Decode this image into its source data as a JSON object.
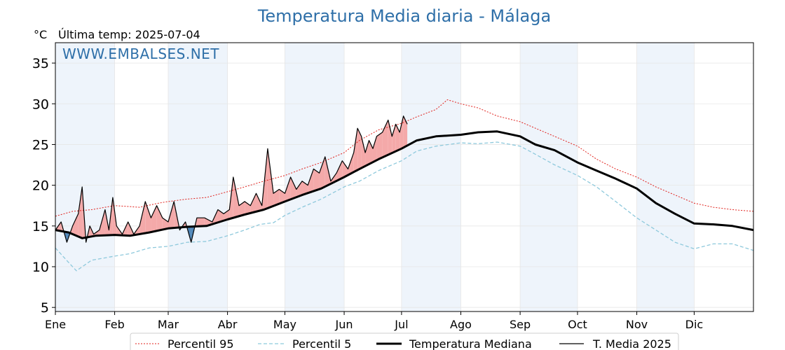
{
  "title": "Temperatura Media diaria - Málaga",
  "unit_label": "°C",
  "last_temp_label": "Última temp: 2025-07-04",
  "watermark": "WWW.EMBALSES.NET",
  "colors": {
    "title": "#2e6fa8",
    "p95": "#e0201b",
    "p5": "#8ec9dc",
    "median": "#000000",
    "current": "#000000",
    "fill_above": "#f4a9a9",
    "fill_below": "#4f86b8",
    "month_band": "#eef4fb"
  },
  "chart_data": {
    "type": "line",
    "x_unit": "day_of_year",
    "xlim": [
      1,
      366
    ],
    "ylim": [
      4.5,
      37.5
    ],
    "yticks": [
      5,
      10,
      15,
      20,
      25,
      30,
      35
    ],
    "months": [
      {
        "label": "Ene",
        "start_day": 1
      },
      {
        "label": "Feb",
        "start_day": 32
      },
      {
        "label": "Mar",
        "start_day": 60
      },
      {
        "label": "Abr",
        "start_day": 91
      },
      {
        "label": "May",
        "start_day": 121
      },
      {
        "label": "Jun",
        "start_day": 152
      },
      {
        "label": "Jul",
        "start_day": 182
      },
      {
        "label": "Ago",
        "start_day": 213
      },
      {
        "label": "Sep",
        "start_day": 244
      },
      {
        "label": "Oct",
        "start_day": 274
      },
      {
        "label": "Nov",
        "start_day": 305
      },
      {
        "label": "Dic",
        "start_day": 335
      }
    ],
    "shaded_months": [
      "Ene",
      "Mar",
      "May",
      "Jul",
      "Sep",
      "Nov"
    ],
    "series": [
      {
        "name": "Percentil 95",
        "style": "dotted",
        "color": "#e0201b",
        "points": [
          [
            1,
            16.2
          ],
          [
            10,
            16.8
          ],
          [
            20,
            17.0
          ],
          [
            32,
            17.5
          ],
          [
            45,
            17.3
          ],
          [
            55,
            17.8
          ],
          [
            60,
            18.0
          ],
          [
            70,
            18.3
          ],
          [
            80,
            18.5
          ],
          [
            91,
            19.2
          ],
          [
            100,
            19.8
          ],
          [
            110,
            20.5
          ],
          [
            121,
            21.2
          ],
          [
            130,
            22.0
          ],
          [
            140,
            22.8
          ],
          [
            152,
            24.0
          ],
          [
            160,
            25.5
          ],
          [
            170,
            26.8
          ],
          [
            182,
            27.6
          ],
          [
            190,
            28.4
          ],
          [
            200,
            29.3
          ],
          [
            206,
            30.5
          ],
          [
            213,
            30.0
          ],
          [
            222,
            29.5
          ],
          [
            232,
            28.5
          ],
          [
            244,
            27.8
          ],
          [
            252,
            27.0
          ],
          [
            262,
            26.0
          ],
          [
            274,
            24.8
          ],
          [
            284,
            23.2
          ],
          [
            294,
            22.0
          ],
          [
            305,
            21.0
          ],
          [
            315,
            19.8
          ],
          [
            325,
            18.8
          ],
          [
            335,
            17.8
          ],
          [
            345,
            17.3
          ],
          [
            355,
            17.0
          ],
          [
            366,
            16.8
          ]
        ]
      },
      {
        "name": "Percentil 5",
        "style": "dashed",
        "color": "#8ec9dc",
        "points": [
          [
            1,
            12.3
          ],
          [
            8,
            10.5
          ],
          [
            12,
            9.5
          ],
          [
            20,
            10.8
          ],
          [
            32,
            11.3
          ],
          [
            40,
            11.6
          ],
          [
            50,
            12.3
          ],
          [
            60,
            12.5
          ],
          [
            70,
            13.0
          ],
          [
            80,
            13.1
          ],
          [
            91,
            13.8
          ],
          [
            100,
            14.5
          ],
          [
            108,
            15.2
          ],
          [
            115,
            15.4
          ],
          [
            121,
            16.3
          ],
          [
            130,
            17.3
          ],
          [
            140,
            18.3
          ],
          [
            152,
            19.8
          ],
          [
            160,
            20.5
          ],
          [
            170,
            21.8
          ],
          [
            182,
            23.0
          ],
          [
            190,
            24.2
          ],
          [
            200,
            24.8
          ],
          [
            213,
            25.2
          ],
          [
            222,
            25.1
          ],
          [
            232,
            25.3
          ],
          [
            244,
            24.8
          ],
          [
            252,
            23.8
          ],
          [
            262,
            22.5
          ],
          [
            274,
            21.2
          ],
          [
            284,
            19.8
          ],
          [
            294,
            18.0
          ],
          [
            305,
            16.0
          ],
          [
            315,
            14.5
          ],
          [
            325,
            13.0
          ],
          [
            335,
            12.2
          ],
          [
            345,
            12.8
          ],
          [
            355,
            12.8
          ],
          [
            366,
            12.0
          ]
        ]
      },
      {
        "name": "Temperatura Mediana",
        "style": "solid-thick",
        "color": "#000000",
        "points": [
          [
            1,
            14.5
          ],
          [
            8,
            14.2
          ],
          [
            15,
            13.5
          ],
          [
            22,
            13.8
          ],
          [
            32,
            13.9
          ],
          [
            40,
            13.8
          ],
          [
            50,
            14.2
          ],
          [
            60,
            14.7
          ],
          [
            70,
            14.9
          ],
          [
            80,
            15.0
          ],
          [
            91,
            15.8
          ],
          [
            100,
            16.4
          ],
          [
            110,
            17.0
          ],
          [
            121,
            18.0
          ],
          [
            130,
            18.8
          ],
          [
            140,
            19.6
          ],
          [
            152,
            21.0
          ],
          [
            160,
            22.0
          ],
          [
            170,
            23.2
          ],
          [
            182,
            24.5
          ],
          [
            190,
            25.5
          ],
          [
            200,
            26.0
          ],
          [
            213,
            26.2
          ],
          [
            222,
            26.5
          ],
          [
            232,
            26.6
          ],
          [
            244,
            26.0
          ],
          [
            252,
            25.0
          ],
          [
            262,
            24.3
          ],
          [
            274,
            22.8
          ],
          [
            284,
            21.8
          ],
          [
            294,
            20.8
          ],
          [
            305,
            19.6
          ],
          [
            315,
            17.8
          ],
          [
            325,
            16.5
          ],
          [
            335,
            15.3
          ],
          [
            345,
            15.2
          ],
          [
            355,
            15.0
          ],
          [
            366,
            14.5
          ]
        ]
      },
      {
        "name": "T. Media 2025",
        "style": "solid-thin",
        "color": "#000000",
        "points": [
          [
            1,
            14.5
          ],
          [
            4,
            15.5
          ],
          [
            7,
            13.0
          ],
          [
            10,
            15.0
          ],
          [
            13,
            16.5
          ],
          [
            15,
            19.8
          ],
          [
            17,
            13.0
          ],
          [
            19,
            15.0
          ],
          [
            21,
            14.0
          ],
          [
            24,
            14.5
          ],
          [
            27,
            17.0
          ],
          [
            29,
            14.5
          ],
          [
            31,
            18.5
          ],
          [
            33,
            15.0
          ],
          [
            36,
            14.0
          ],
          [
            39,
            15.5
          ],
          [
            42,
            14.0
          ],
          [
            45,
            15.0
          ],
          [
            48,
            18.0
          ],
          [
            51,
            16.0
          ],
          [
            54,
            17.5
          ],
          [
            57,
            16.0
          ],
          [
            60,
            15.5
          ],
          [
            63,
            18.0
          ],
          [
            66,
            14.5
          ],
          [
            69,
            15.5
          ],
          [
            72,
            13.0
          ],
          [
            75,
            16.0
          ],
          [
            79,
            16.0
          ],
          [
            83,
            15.5
          ],
          [
            86,
            17.0
          ],
          [
            89,
            16.5
          ],
          [
            92,
            17.0
          ],
          [
            94,
            21.0
          ],
          [
            97,
            17.5
          ],
          [
            100,
            18.0
          ],
          [
            103,
            17.5
          ],
          [
            106,
            19.0
          ],
          [
            109,
            17.5
          ],
          [
            112,
            24.5
          ],
          [
            115,
            19.0
          ],
          [
            118,
            19.5
          ],
          [
            121,
            19.0
          ],
          [
            124,
            21.0
          ],
          [
            127,
            19.5
          ],
          [
            130,
            20.5
          ],
          [
            133,
            20.0
          ],
          [
            136,
            22.0
          ],
          [
            139,
            21.5
          ],
          [
            142,
            23.5
          ],
          [
            145,
            20.5
          ],
          [
            148,
            21.5
          ],
          [
            151,
            23.0
          ],
          [
            154,
            22.0
          ],
          [
            157,
            24.0
          ],
          [
            159,
            27.0
          ],
          [
            161,
            26.0
          ],
          [
            163,
            24.0
          ],
          [
            165,
            25.5
          ],
          [
            167,
            24.5
          ],
          [
            169,
            26.0
          ],
          [
            172,
            26.5
          ],
          [
            175,
            28.0
          ],
          [
            177,
            26.0
          ],
          [
            179,
            27.5
          ],
          [
            181,
            26.5
          ],
          [
            183,
            28.5
          ],
          [
            185,
            27.5
          ]
        ]
      }
    ]
  },
  "legend": {
    "items": [
      "Percentil 95",
      "Percentil 5",
      "Temperatura Mediana",
      "T. Media 2025"
    ]
  }
}
